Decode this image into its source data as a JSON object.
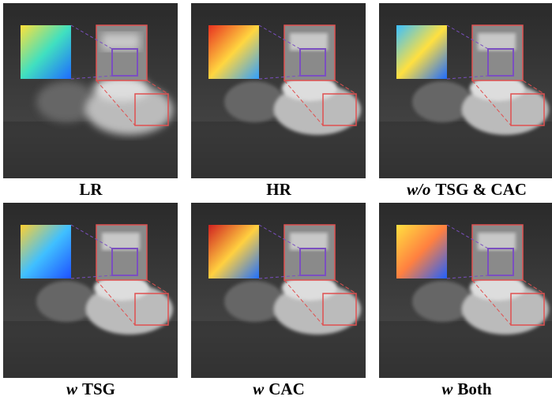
{
  "panels": [
    {
      "caption": {
        "text": "LR"
      }
    },
    {
      "caption": {
        "text": "HR"
      }
    },
    {
      "caption": {
        "prefix": "w/o",
        "text": "TSG & CAC"
      }
    },
    {
      "caption": {
        "prefix": "w",
        "text": "TSG"
      }
    },
    {
      "caption": {
        "prefix": "w",
        "text": "CAC"
      }
    },
    {
      "caption": {
        "prefix": "w",
        "text": "Both"
      }
    }
  ]
}
